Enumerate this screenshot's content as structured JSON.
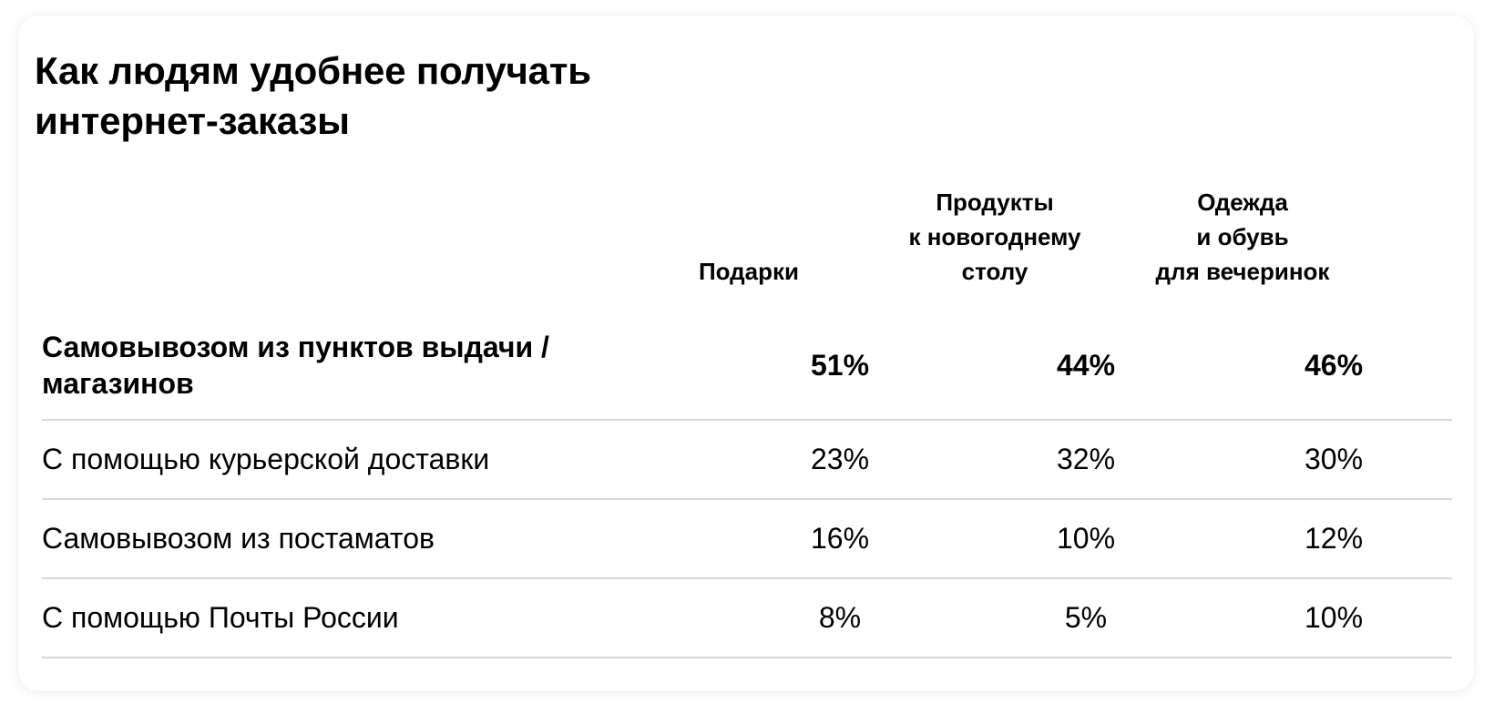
{
  "chart_data": {
    "type": "table",
    "title": "Как людям удобнее получать\nинтернет-заказы",
    "columns": [
      "Подарки",
      "Продукты\nк новогоднему\nстолу",
      "Одежда\nи обувь\nдля вечеринок"
    ],
    "rows": [
      {
        "label": "Самовывозом из пунктов выдачи /\nмагазинов",
        "values": [
          "51%",
          "44%",
          "46%"
        ],
        "highlight": true
      },
      {
        "label": "С помощью курьерской доставки",
        "values": [
          "23%",
          "32%",
          "30%"
        ],
        "highlight": false
      },
      {
        "label": "Самовывозом из постаматов",
        "values": [
          "16%",
          "10%",
          "12%"
        ],
        "highlight": false
      },
      {
        "label": "С помощью Почты России",
        "values": [
          "8%",
          "5%",
          "10%"
        ],
        "highlight": false
      }
    ]
  }
}
